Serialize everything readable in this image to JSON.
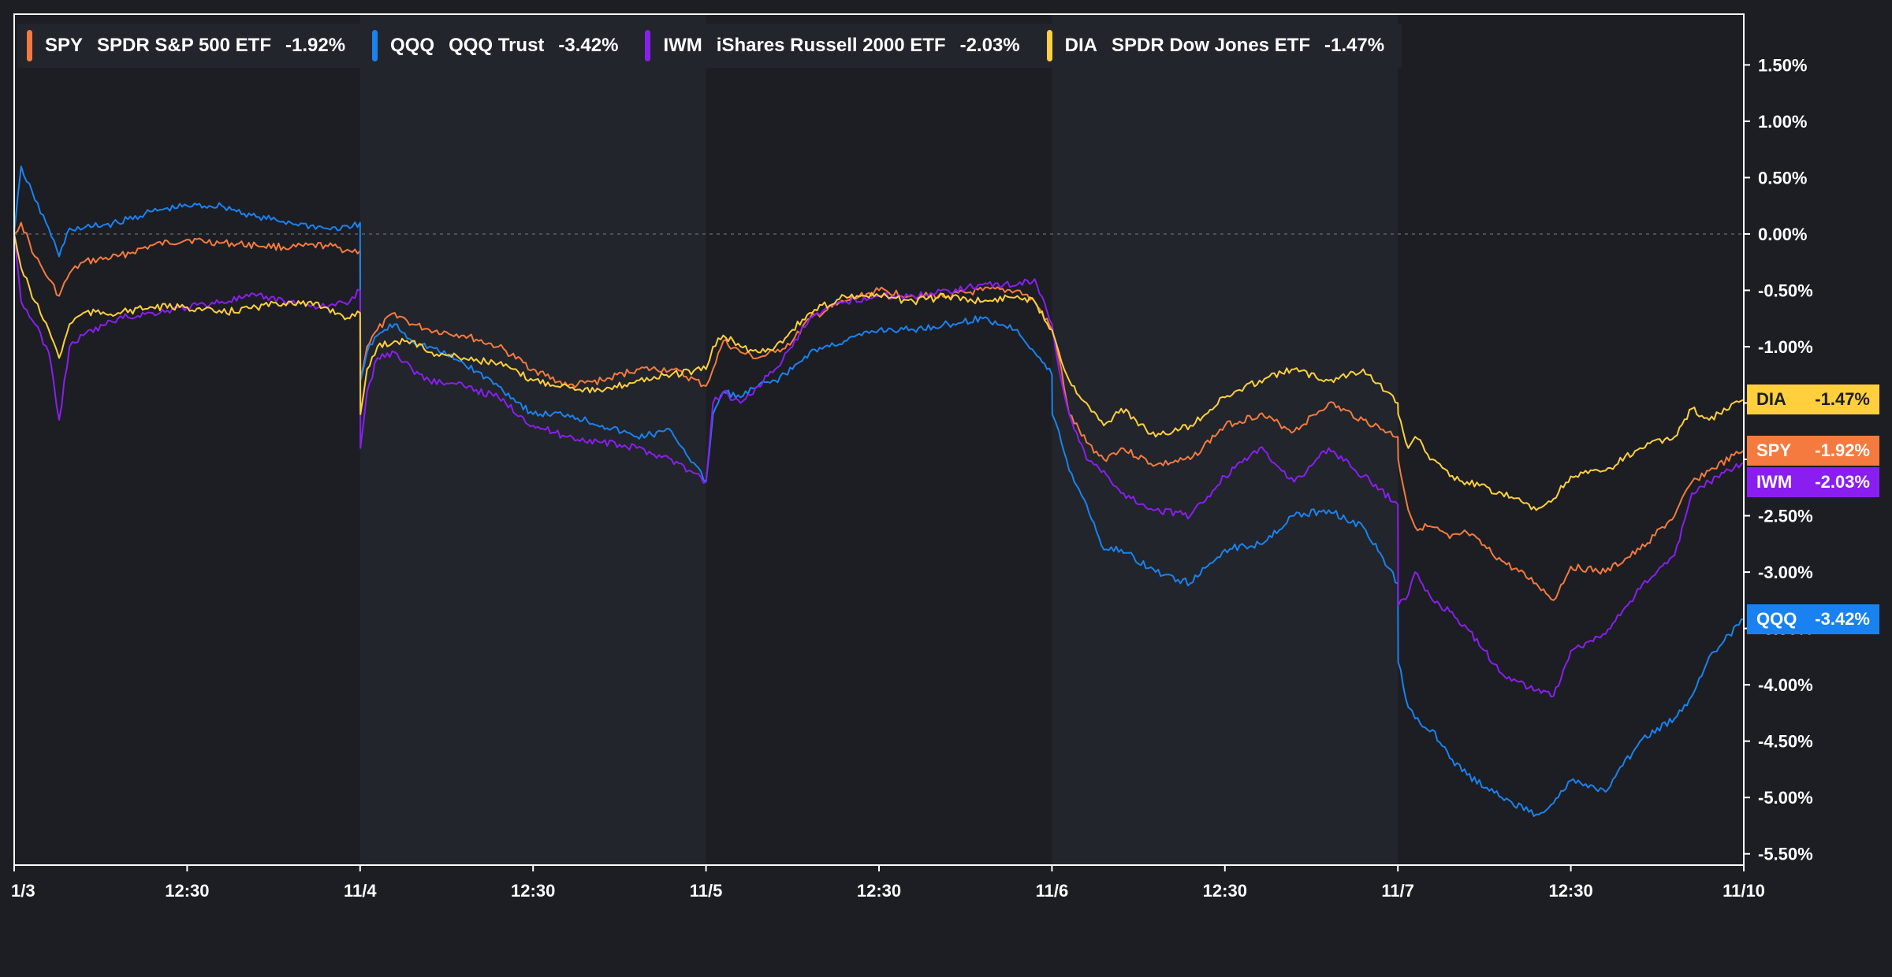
{
  "chart_data": {
    "type": "line",
    "title": "",
    "xlabel": "",
    "ylabel": "",
    "ylim": [
      -5.6,
      1.95
    ],
    "y_ticks": [
      "1.50%",
      "1.00%",
      "0.50%",
      "0.00%",
      "-0.50%",
      "-1.00%",
      "-1.50%",
      "-2.00%",
      "-2.50%",
      "-3.00%",
      "-3.50%",
      "-4.00%",
      "-4.50%",
      "-5.00%",
      "-5.50%"
    ],
    "y_tick_values": [
      1.5,
      1.0,
      0.5,
      0.0,
      -0.5,
      -1.0,
      -1.5,
      -2.0,
      -2.5,
      -3.0,
      -3.5,
      -4.0,
      -4.5,
      -5.0,
      -5.5
    ],
    "x_ticks": [
      "1/3",
      "12:30",
      "11/4",
      "12:30",
      "11/5",
      "12:30",
      "11/6",
      "12:30",
      "11/7",
      "12:30",
      "11/10"
    ],
    "x_tick_values": [
      0,
      0.5,
      1,
      1.5,
      2,
      2.5,
      3,
      3.5,
      4,
      4.5,
      5
    ],
    "xlim": [
      0,
      5
    ],
    "zero_line": true,
    "grid": false,
    "legend_position": "top-left",
    "series": [
      {
        "ticker": "SPY",
        "name": "SPDR S&P 500 ETF",
        "change": "-1.92%",
        "last": -1.92,
        "color": "#f47a3f",
        "x": [
          0,
          0.02,
          0.06,
          0.1,
          0.13,
          0.16,
          0.2,
          0.3,
          0.4,
          0.5,
          0.6,
          0.7,
          0.8,
          0.9,
          0.97,
          1.0,
          1.001,
          1.02,
          1.05,
          1.1,
          1.15,
          1.2,
          1.3,
          1.4,
          1.5,
          1.6,
          1.7,
          1.8,
          1.9,
          2.0,
          2.02,
          2.05,
          2.1,
          2.15,
          2.2,
          2.25,
          2.3,
          2.4,
          2.5,
          2.6,
          2.7,
          2.8,
          2.9,
          2.95,
          3.0,
          3.02,
          3.05,
          3.1,
          3.15,
          3.2,
          3.3,
          3.4,
          3.5,
          3.6,
          3.7,
          3.8,
          3.9,
          4.0,
          4.001,
          4.03,
          4.05,
          4.1,
          4.15,
          4.2,
          4.3,
          4.4,
          4.45,
          4.5,
          4.6,
          4.7,
          4.8,
          4.85,
          4.9,
          5.0
        ],
        "y": [
          0.0,
          0.1,
          -0.2,
          -0.4,
          -0.55,
          -0.35,
          -0.25,
          -0.2,
          -0.1,
          -0.05,
          -0.08,
          -0.1,
          -0.12,
          -0.1,
          -0.15,
          -0.15,
          -1.3,
          -1.0,
          -0.85,
          -0.7,
          -0.8,
          -0.85,
          -0.9,
          -1.0,
          -1.2,
          -1.35,
          -1.3,
          -1.2,
          -1.2,
          -1.35,
          -1.2,
          -0.95,
          -1.05,
          -1.1,
          -1.05,
          -0.95,
          -0.75,
          -0.6,
          -0.5,
          -0.55,
          -0.55,
          -0.5,
          -0.5,
          -0.6,
          -0.85,
          -1.1,
          -1.6,
          -1.85,
          -2.0,
          -1.9,
          -2.05,
          -2.0,
          -1.7,
          -1.6,
          -1.75,
          -1.5,
          -1.65,
          -1.8,
          -2.0,
          -2.45,
          -2.6,
          -2.6,
          -2.7,
          -2.65,
          -2.9,
          -3.1,
          -3.25,
          -2.95,
          -3.0,
          -2.8,
          -2.5,
          -2.2,
          -2.1,
          -1.92
        ]
      },
      {
        "ticker": "QQQ",
        "name": "QQQ Trust",
        "change": "-3.42%",
        "last": -3.42,
        "color": "#1a82f0",
        "x": [
          0,
          0.02,
          0.06,
          0.1,
          0.13,
          0.16,
          0.2,
          0.3,
          0.4,
          0.5,
          0.6,
          0.7,
          0.8,
          0.9,
          0.97,
          1.0,
          1.001,
          1.02,
          1.05,
          1.1,
          1.15,
          1.2,
          1.3,
          1.4,
          1.5,
          1.6,
          1.7,
          1.8,
          1.9,
          2.0,
          2.02,
          2.05,
          2.1,
          2.15,
          2.2,
          2.25,
          2.3,
          2.4,
          2.5,
          2.6,
          2.7,
          2.8,
          2.9,
          3.0,
          3.001,
          3.02,
          3.05,
          3.1,
          3.15,
          3.2,
          3.3,
          3.4,
          3.5,
          3.6,
          3.7,
          3.8,
          3.9,
          4.0,
          4.001,
          4.03,
          4.05,
          4.1,
          4.15,
          4.2,
          4.3,
          4.4,
          4.45,
          4.5,
          4.6,
          4.7,
          4.8,
          4.85,
          4.9,
          5.0
        ],
        "y": [
          0.0,
          0.6,
          0.3,
          0.05,
          -0.2,
          0.05,
          0.05,
          0.1,
          0.2,
          0.25,
          0.25,
          0.15,
          0.1,
          0.05,
          0.05,
          0.1,
          -1.3,
          -1.05,
          -0.9,
          -0.8,
          -0.95,
          -1.0,
          -1.15,
          -1.35,
          -1.6,
          -1.6,
          -1.7,
          -1.8,
          -1.75,
          -2.2,
          -1.6,
          -1.4,
          -1.45,
          -1.35,
          -1.3,
          -1.2,
          -1.05,
          -0.95,
          -0.85,
          -0.85,
          -0.8,
          -0.75,
          -0.85,
          -1.25,
          -1.6,
          -1.75,
          -2.1,
          -2.4,
          -2.8,
          -2.8,
          -3.0,
          -3.1,
          -2.8,
          -2.75,
          -2.5,
          -2.45,
          -2.6,
          -3.1,
          -3.8,
          -4.2,
          -4.3,
          -4.4,
          -4.65,
          -4.8,
          -5.0,
          -5.15,
          -5.05,
          -4.85,
          -4.95,
          -4.5,
          -4.3,
          -4.1,
          -3.75,
          -3.42
        ]
      },
      {
        "ticker": "IWM",
        "name": "iShares Russell 2000 ETF",
        "change": "-2.03%",
        "last": -2.03,
        "color": "#8a1ef0",
        "x": [
          0,
          0.02,
          0.06,
          0.1,
          0.13,
          0.16,
          0.2,
          0.3,
          0.4,
          0.5,
          0.6,
          0.7,
          0.8,
          0.9,
          0.97,
          1.0,
          1.001,
          1.02,
          1.05,
          1.1,
          1.15,
          1.2,
          1.3,
          1.4,
          1.5,
          1.6,
          1.7,
          1.8,
          1.9,
          2.0,
          2.02,
          2.05,
          2.1,
          2.15,
          2.2,
          2.25,
          2.3,
          2.4,
          2.5,
          2.6,
          2.7,
          2.8,
          2.9,
          2.95,
          3.0,
          3.02,
          3.05,
          3.1,
          3.15,
          3.2,
          3.3,
          3.4,
          3.5,
          3.6,
          3.7,
          3.8,
          3.9,
          4.0,
          4.001,
          4.03,
          4.05,
          4.1,
          4.15,
          4.2,
          4.3,
          4.4,
          4.45,
          4.5,
          4.6,
          4.7,
          4.8,
          4.85,
          4.9,
          5.0
        ],
        "y": [
          0.0,
          -0.6,
          -0.8,
          -1.05,
          -1.65,
          -1.0,
          -0.9,
          -0.75,
          -0.7,
          -0.65,
          -0.6,
          -0.55,
          -0.6,
          -0.65,
          -0.6,
          -0.5,
          -1.9,
          -1.4,
          -1.1,
          -1.05,
          -1.2,
          -1.3,
          -1.35,
          -1.45,
          -1.7,
          -1.8,
          -1.85,
          -1.9,
          -2.0,
          -2.2,
          -1.5,
          -1.4,
          -1.5,
          -1.35,
          -1.2,
          -1.0,
          -0.75,
          -0.6,
          -0.55,
          -0.55,
          -0.5,
          -0.45,
          -0.45,
          -0.4,
          -0.8,
          -1.2,
          -1.6,
          -2.0,
          -2.1,
          -2.3,
          -2.45,
          -2.5,
          -2.15,
          -1.9,
          -2.2,
          -1.9,
          -2.15,
          -2.4,
          -3.3,
          -3.2,
          -3.0,
          -3.25,
          -3.35,
          -3.5,
          -3.9,
          -4.05,
          -4.1,
          -3.7,
          -3.55,
          -3.15,
          -2.85,
          -2.3,
          -2.2,
          -2.03
        ]
      },
      {
        "ticker": "DIA",
        "name": "SPDR Dow Jones ETF",
        "change": "-1.47%",
        "last": -1.47,
        "color": "#ffcf3d",
        "x": [
          0,
          0.02,
          0.06,
          0.1,
          0.13,
          0.16,
          0.2,
          0.3,
          0.4,
          0.5,
          0.6,
          0.7,
          0.8,
          0.9,
          0.97,
          1.0,
          1.001,
          1.02,
          1.05,
          1.1,
          1.15,
          1.2,
          1.3,
          1.4,
          1.5,
          1.6,
          1.7,
          1.8,
          1.9,
          2.0,
          2.02,
          2.05,
          2.1,
          2.15,
          2.2,
          2.25,
          2.3,
          2.4,
          2.5,
          2.6,
          2.7,
          2.8,
          2.9,
          2.95,
          3.0,
          3.02,
          3.05,
          3.1,
          3.15,
          3.2,
          3.3,
          3.4,
          3.5,
          3.6,
          3.7,
          3.8,
          3.9,
          4.0,
          4.001,
          4.03,
          4.05,
          4.1,
          4.15,
          4.2,
          4.3,
          4.4,
          4.45,
          4.5,
          4.6,
          4.7,
          4.8,
          4.85,
          4.9,
          5.0
        ],
        "y": [
          0.0,
          -0.3,
          -0.6,
          -0.85,
          -1.1,
          -0.8,
          -0.7,
          -0.7,
          -0.65,
          -0.65,
          -0.7,
          -0.65,
          -0.6,
          -0.65,
          -0.75,
          -0.7,
          -1.6,
          -1.2,
          -1.0,
          -0.95,
          -0.95,
          -1.05,
          -1.1,
          -1.15,
          -1.3,
          -1.35,
          -1.4,
          -1.3,
          -1.25,
          -1.2,
          -1.0,
          -0.9,
          -1.0,
          -1.05,
          -1.0,
          -0.85,
          -0.7,
          -0.55,
          -0.55,
          -0.6,
          -0.55,
          -0.6,
          -0.55,
          -0.6,
          -0.85,
          -1.05,
          -1.3,
          -1.5,
          -1.7,
          -1.55,
          -1.8,
          -1.7,
          -1.45,
          -1.3,
          -1.2,
          -1.3,
          -1.2,
          -1.5,
          -1.6,
          -1.9,
          -1.8,
          -2.0,
          -2.15,
          -2.2,
          -2.3,
          -2.45,
          -2.35,
          -2.15,
          -2.1,
          -1.9,
          -1.8,
          -1.55,
          -1.65,
          -1.47
        ]
      }
    ]
  },
  "colors": {
    "background": "#1c1e23",
    "session_alt_band": "#22252b",
    "axis": "#ffffff",
    "zero_line": "#5a5e66"
  }
}
